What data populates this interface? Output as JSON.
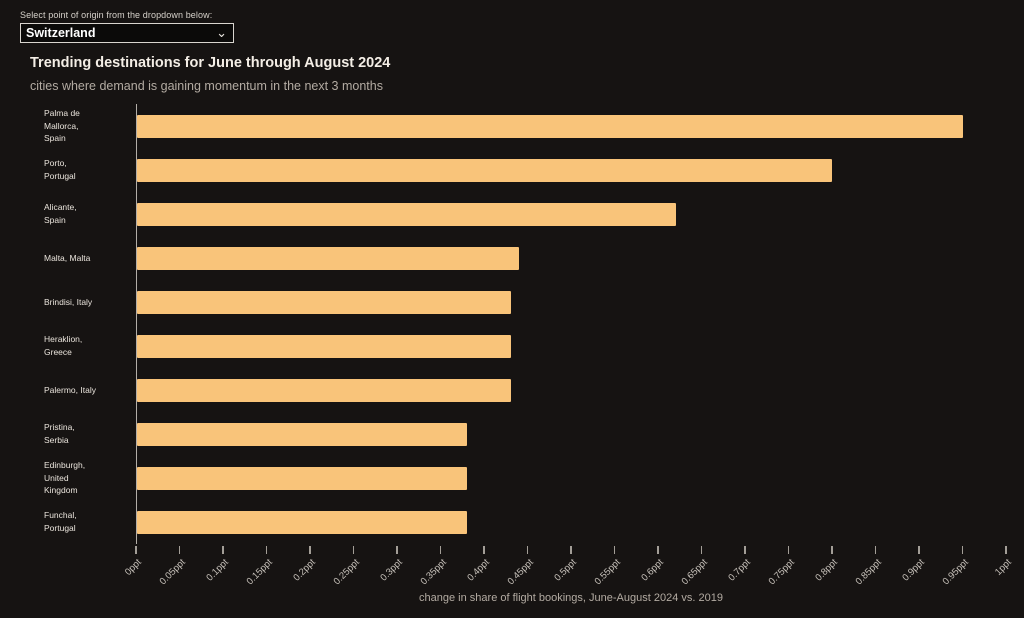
{
  "controls": {
    "label": "Select point of origin from the dropdown below:",
    "origin_selected": "Switzerland"
  },
  "chart_data": {
    "type": "bar",
    "orientation": "horizontal",
    "title": "Trending destinations for June through August 2024",
    "subtitle": "cities where demand is gaining momentum in the next 3 months",
    "xlabel": "change in share of flight bookings, June-August 2024 vs. 2019",
    "unit": "ppt",
    "xlim": [
      0,
      1
    ],
    "xtick_step": 0.05,
    "grid": false,
    "legend": "none",
    "bar_color": "#f9c47a",
    "categories": [
      "Palma de Mallorca, Spain",
      "Porto, Portugal",
      "Alicante, Spain",
      "Malta, Malta",
      "Brindisi, Italy",
      "Heraklion, Greece",
      "Palermo, Italy",
      "Pristina, Serbia",
      "Edinburgh, United Kingdom",
      "Funchal, Portugal"
    ],
    "values": [
      0.95,
      0.8,
      0.62,
      0.44,
      0.43,
      0.43,
      0.43,
      0.38,
      0.38,
      0.38
    ],
    "label_display": [
      "Palma de\nMallorca,\nSpain",
      "Porto,\nPortugal",
      "Alicante,\nSpain",
      "Malta, Malta",
      "Brindisi, Italy",
      "Heraklion,\nGreece",
      "Palermo, Italy",
      "Pristina,\nSerbia",
      "Edinburgh,\nUnited\nKingdom",
      "Funchal,\nPortugal"
    ],
    "xtick_labels": [
      "0ppt",
      "0.05ppt",
      "0.1ppt",
      "0.15ppt",
      "0.2ppt",
      "0.25ppt",
      "0.3ppt",
      "0.35ppt",
      "0.4ppt",
      "0.45ppt",
      "0.5ppt",
      "0.55ppt",
      "0.6ppt",
      "0.65ppt",
      "0.7ppt",
      "0.75ppt",
      "0.8ppt",
      "0.85ppt",
      "0.9ppt",
      "0.95ppt",
      "1ppt"
    ]
  },
  "colors": {
    "background": "#161312",
    "bar": "#f9c47a",
    "title": "#f4eee6",
    "subtitle": "#b3aba2",
    "axis_line": "#b3aea8",
    "tick_label": "#c6c0b9"
  }
}
